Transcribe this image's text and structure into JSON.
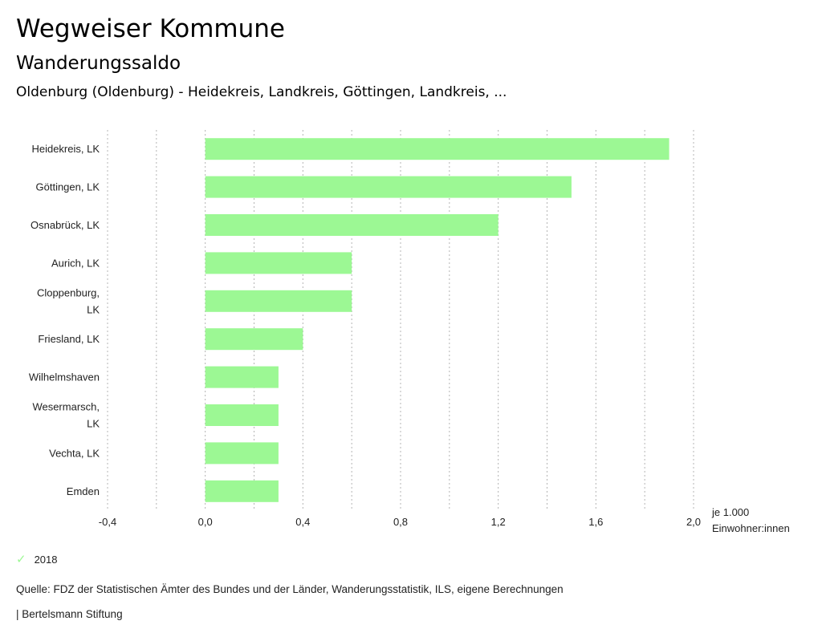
{
  "header": {
    "title": "Wegweiser Kommune",
    "subtitle": "Wanderungssaldo",
    "regions": "Oldenburg (Oldenburg) - Heidekreis, Landkreis, Göttingen, Landkreis, ..."
  },
  "chart_data": {
    "type": "bar",
    "orientation": "horizontal",
    "title": "Wanderungssaldo",
    "categories": [
      [
        "Heidekreis, LK"
      ],
      [
        "Göttingen, LK"
      ],
      [
        "Osnabrück, LK"
      ],
      [
        "Aurich, LK"
      ],
      [
        "Cloppenburg,",
        "LK"
      ],
      [
        "Friesland, LK"
      ],
      [
        "Wilhelmshaven"
      ],
      [
        "Wesermarsch,",
        "LK"
      ],
      [
        "Vechta, LK"
      ],
      [
        "Emden"
      ]
    ],
    "series": [
      {
        "name": "2018",
        "color": "#9cf894",
        "values": [
          1.9,
          1.5,
          1.2,
          0.6,
          0.6,
          0.4,
          0.3,
          0.3,
          0.3,
          0.3
        ]
      }
    ],
    "xlim": [
      -0.4,
      2.0
    ],
    "xticks": [
      -0.4,
      0.0,
      0.4,
      0.8,
      1.2,
      1.6,
      2.0
    ],
    "xtick_labels": [
      "-0,4",
      "0,0",
      "0,4",
      "0,8",
      "1,2",
      "1,6",
      "2,0"
    ],
    "gridlines": [
      -0.4,
      -0.2,
      0.0,
      0.2,
      0.4,
      0.6,
      0.8,
      1.0,
      1.2,
      1.4,
      1.6,
      1.8,
      2.0
    ],
    "grid": true,
    "xlabel": [
      "je 1.000",
      "Einwohner:innen"
    ],
    "ylabel": "",
    "legend_position": "bottom-left"
  },
  "legend": {
    "icon": "check-icon",
    "label": "2018"
  },
  "footer": {
    "source": "Quelle: FDZ der Statistischen Ämter des Bundes und der Länder, Wanderungsstatistik, ILS, eigene Berechnungen",
    "credit": "| Bertelsmann Stiftung"
  }
}
